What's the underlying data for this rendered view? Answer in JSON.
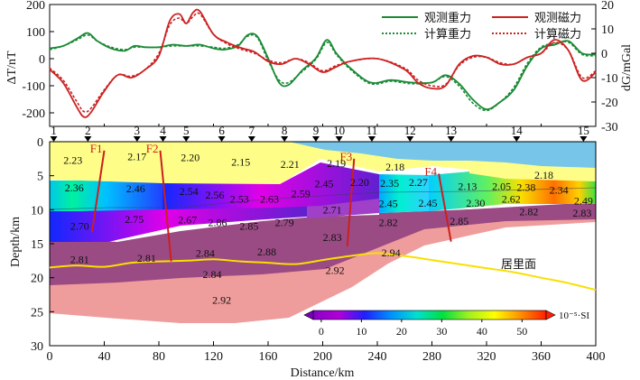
{
  "chart_data": [
    {
      "type": "line",
      "title": "",
      "ylabel_left": "ΔT/nT",
      "ylabel_right": "dG/mGal",
      "xlim": [
        0,
        400
      ],
      "ylim_left": [
        -250,
        200
      ],
      "ylim_right": [
        -30,
        20
      ],
      "yticks_left": [
        "200",
        "100",
        "0",
        "-100",
        "-200"
      ],
      "yticks_right": [
        "20",
        "10",
        "0",
        "-10",
        "-20",
        "-30"
      ],
      "legend": {
        "placement": "top-right",
        "entries": [
          "观测重力",
          "观测磁力",
          "计算重力",
          "计算磁力"
        ]
      },
      "colors": {
        "gravity": "#1a8a35",
        "magnetic": "#cc2222"
      },
      "series": [
        {
          "name": "观测重力",
          "axis": "right",
          "color": "#1a8a35",
          "dash": false,
          "x": [
            0,
            10,
            20,
            28,
            35,
            45,
            55,
            62,
            70,
            80,
            90,
            100,
            110,
            120,
            128,
            138,
            145,
            152,
            160,
            168,
            175,
            185,
            195,
            203,
            210,
            220,
            235,
            250,
            265,
            280,
            290,
            300,
            310,
            320,
            330,
            340,
            350,
            360,
            370,
            380,
            390,
            400
          ],
          "y": [
            2,
            3,
            6,
            8.3,
            5,
            2,
            1,
            3,
            2.5,
            2.5,
            3.5,
            3,
            3.5,
            2,
            1.5,
            3,
            7.5,
            7,
            -2,
            -12,
            -13,
            -7,
            -2,
            5.5,
            0,
            -6,
            -12,
            -11,
            -12,
            -12,
            -9,
            -12.5,
            -19,
            -23,
            -20,
            -15,
            -5,
            2,
            3.5,
            5,
            0,
            -0.5
          ]
        },
        {
          "name": "计算重力",
          "axis": "right",
          "color": "#1a8a35",
          "dash": true,
          "x": [
            0,
            10,
            20,
            28,
            35,
            45,
            55,
            62,
            70,
            80,
            90,
            100,
            110,
            120,
            128,
            138,
            145,
            152,
            160,
            168,
            175,
            185,
            195,
            203,
            210,
            220,
            235,
            250,
            265,
            280,
            290,
            300,
            310,
            320,
            330,
            340,
            350,
            360,
            370,
            380,
            390,
            400
          ],
          "y": [
            1.5,
            3,
            5.5,
            7.5,
            5,
            2.5,
            1.5,
            2.5,
            2.5,
            2.5,
            3,
            3,
            3,
            2.5,
            2,
            3.5,
            7,
            6.5,
            -3,
            -11,
            -12,
            -7.5,
            -2.5,
            4.5,
            -0.5,
            -6.5,
            -12.5,
            -11.5,
            -12.5,
            -12,
            -9.5,
            -13.5,
            -20.5,
            -23.5,
            -20,
            -14,
            -4,
            2.5,
            4,
            4.5,
            -0.5,
            -1
          ]
        },
        {
          "name": "观测磁力",
          "axis": "left",
          "color": "#cc2222",
          "dash": false,
          "x": [
            0,
            10,
            20,
            25,
            30,
            40,
            50,
            60,
            70,
            80,
            88,
            95,
            100,
            105,
            110,
            120,
            130,
            140,
            150,
            160,
            170,
            180,
            190,
            200,
            210,
            220,
            240,
            260,
            270,
            280,
            290,
            300,
            310,
            320,
            330,
            340,
            350,
            360,
            370,
            380,
            390,
            400
          ],
          "y": [
            -40,
            -90,
            -180,
            -215,
            -200,
            -120,
            -60,
            -70,
            -40,
            10,
            140,
            165,
            130,
            170,
            175,
            90,
            60,
            40,
            25,
            -10,
            -20,
            0,
            -20,
            -50,
            -30,
            -10,
            0,
            -40,
            -90,
            -110,
            -100,
            -20,
            10,
            5,
            -20,
            -20,
            5,
            20,
            70,
            30,
            -80,
            -50
          ]
        },
        {
          "name": "计算磁力",
          "axis": "left",
          "color": "#cc2222",
          "dash": true,
          "x": [
            0,
            10,
            20,
            25,
            30,
            40,
            50,
            60,
            70,
            80,
            88,
            95,
            100,
            105,
            110,
            120,
            130,
            140,
            150,
            160,
            170,
            180,
            190,
            200,
            210,
            220,
            240,
            260,
            270,
            280,
            290,
            300,
            310,
            320,
            330,
            340,
            350,
            360,
            370,
            380,
            390,
            400
          ],
          "y": [
            -35,
            -80,
            -160,
            -195,
            -185,
            -115,
            -60,
            -65,
            -40,
            20,
            125,
            150,
            130,
            155,
            165,
            90,
            55,
            35,
            20,
            -5,
            -15,
            0,
            -15,
            -45,
            -25,
            -10,
            0,
            -35,
            -80,
            -100,
            -95,
            -25,
            5,
            5,
            -15,
            -20,
            5,
            20,
            60,
            30,
            -70,
            -45
          ]
        }
      ]
    },
    {
      "type": "table",
      "xlabel": "Distance/km",
      "ylabel": "Depth/km",
      "xlim": [
        0,
        400
      ],
      "ylim": [
        0,
        30
      ],
      "xticks": [
        "0",
        "40",
        "80",
        "120",
        "160",
        "200",
        "240",
        "280",
        "320",
        "360",
        "400"
      ],
      "yticks": [
        "0",
        "5",
        "10",
        "15",
        "20",
        "25",
        "30"
      ],
      "stations": [
        {
          "label": "1",
          "x": 3
        },
        {
          "label": "2",
          "x": 28
        },
        {
          "label": "3",
          "x": 64
        },
        {
          "label": "4",
          "x": 83
        },
        {
          "label": "5",
          "x": 100
        },
        {
          "label": "6",
          "x": 126
        },
        {
          "label": "7",
          "x": 148
        },
        {
          "label": "8",
          "x": 172
        },
        {
          "label": "9",
          "x": 195
        },
        {
          "label": "10",
          "x": 212
        },
        {
          "label": "11",
          "x": 236
        },
        {
          "label": "12",
          "x": 264
        },
        {
          "label": "13",
          "x": 294
        },
        {
          "label": "14",
          "x": 342
        },
        {
          "label": "15",
          "x": 391
        }
      ],
      "faults": [
        {
          "label": "F1",
          "top": [
            40,
            1.3
          ],
          "bottom": [
            31,
            13.3
          ]
        },
        {
          "label": "F2",
          "top": [
            81,
            1.3
          ],
          "bottom": [
            89,
            17.6
          ]
        },
        {
          "label": "F3",
          "top": [
            223,
            2.5
          ],
          "bottom": [
            218,
            15.4
          ]
        },
        {
          "label": "F4",
          "top": [
            285,
            4.7
          ],
          "bottom": [
            294,
            14.7
          ]
        }
      ],
      "density_labels": [
        {
          "text": "2.23",
          "x": 17,
          "y": 2.7
        },
        {
          "text": "2.17",
          "x": 64,
          "y": 2.2
        },
        {
          "text": "2.20",
          "x": 103,
          "y": 2.3
        },
        {
          "text": "2.15",
          "x": 140,
          "y": 3.0
        },
        {
          "text": "2.21",
          "x": 176,
          "y": 3.3
        },
        {
          "text": "2.19",
          "x": 210,
          "y": 3.2
        },
        {
          "text": "2.18",
          "x": 253,
          "y": 3.7
        },
        {
          "text": "2.18",
          "x": 362,
          "y": 4.9
        },
        {
          "text": "2.36",
          "x": 18,
          "y": 6.8
        },
        {
          "text": "2.46",
          "x": 63,
          "y": 6.9
        },
        {
          "text": "2.54",
          "x": 102,
          "y": 7.3
        },
        {
          "text": "2.56",
          "x": 121,
          "y": 7.8
        },
        {
          "text": "2.53",
          "x": 139,
          "y": 8.4
        },
        {
          "text": "2.63",
          "x": 161,
          "y": 8.4
        },
        {
          "text": "2.59",
          "x": 184,
          "y": 7.6
        },
        {
          "text": "2.45",
          "x": 201,
          "y": 6.2
        },
        {
          "text": "2.20",
          "x": 227,
          "y": 6.0
        },
        {
          "text": "2.35",
          "x": 249,
          "y": 6.1
        },
        {
          "text": "2.27",
          "x": 270,
          "y": 6.0
        },
        {
          "text": "2.13",
          "x": 306,
          "y": 6.6
        },
        {
          "text": "2.05",
          "x": 331,
          "y": 6.6
        },
        {
          "text": "2.38",
          "x": 349,
          "y": 6.7
        },
        {
          "text": "2.34",
          "x": 373,
          "y": 7.1
        },
        {
          "text": "2.62",
          "x": 338,
          "y": 8.4
        },
        {
          "text": "2.49",
          "x": 391,
          "y": 8.7
        },
        {
          "text": "2.71",
          "x": 207,
          "y": 10.0
        },
        {
          "text": "2.45",
          "x": 248,
          "y": 9.1
        },
        {
          "text": "2.45",
          "x": 277,
          "y": 9.0
        },
        {
          "text": "2.30",
          "x": 312,
          "y": 9.0
        },
        {
          "text": "2.82",
          "x": 351,
          "y": 10.3
        },
        {
          "text": "2.83",
          "x": 390,
          "y": 10.5
        },
        {
          "text": "2.70",
          "x": 22,
          "y": 12.4
        },
        {
          "text": "2.75",
          "x": 62,
          "y": 11.4
        },
        {
          "text": "2.67",
          "x": 101,
          "y": 11.5
        },
        {
          "text": "2.86",
          "x": 123,
          "y": 11.9
        },
        {
          "text": "2.85",
          "x": 146,
          "y": 12.4
        },
        {
          "text": "2.79",
          "x": 172,
          "y": 11.9
        },
        {
          "text": "2.82",
          "x": 248,
          "y": 11.9
        },
        {
          "text": "2.85",
          "x": 300,
          "y": 11.7
        },
        {
          "text": "2.83",
          "x": 207,
          "y": 14.1
        },
        {
          "text": "2.88",
          "x": 159,
          "y": 16.2
        },
        {
          "text": "2.84",
          "x": 114,
          "y": 16.4
        },
        {
          "text": "2.81",
          "x": 22,
          "y": 17.3
        },
        {
          "text": "2.81",
          "x": 71,
          "y": 17.1
        },
        {
          "text": "2.84",
          "x": 119,
          "y": 19.5
        },
        {
          "text": "2.92",
          "x": 209,
          "y": 18.9
        },
        {
          "text": "2.94",
          "x": 250,
          "y": 16.3
        },
        {
          "text": "2.92",
          "x": 126,
          "y": 23.3
        }
      ],
      "curie_label": "居里面",
      "curie_surface": {
        "x": [
          0,
          20,
          40,
          60,
          80,
          100,
          120,
          140,
          160,
          180,
          200,
          220,
          240,
          260,
          280,
          300,
          320,
          340,
          360,
          380,
          400
        ],
        "y": [
          18.5,
          18.2,
          18.4,
          17.8,
          17.6,
          17.5,
          17.3,
          17.6,
          17.8,
          18.0,
          17.4,
          16.8,
          16.4,
          16.8,
          17.4,
          18.0,
          18.6,
          19.2,
          20.0,
          20.8,
          21.8
        ]
      },
      "colorbar": {
        "ticks": [
          "0",
          "10",
          "20",
          "30",
          "40",
          "50"
        ],
        "range": [
          -2,
          56
        ],
        "unit": "10⁻⁵·SI",
        "colors": [
          "#8a00c8",
          "#b000d8",
          "#2020ff",
          "#0090ff",
          "#00e0d0",
          "#00e040",
          "#a0f020",
          "#ffff00",
          "#ff9000",
          "#ff2000"
        ]
      }
    }
  ]
}
